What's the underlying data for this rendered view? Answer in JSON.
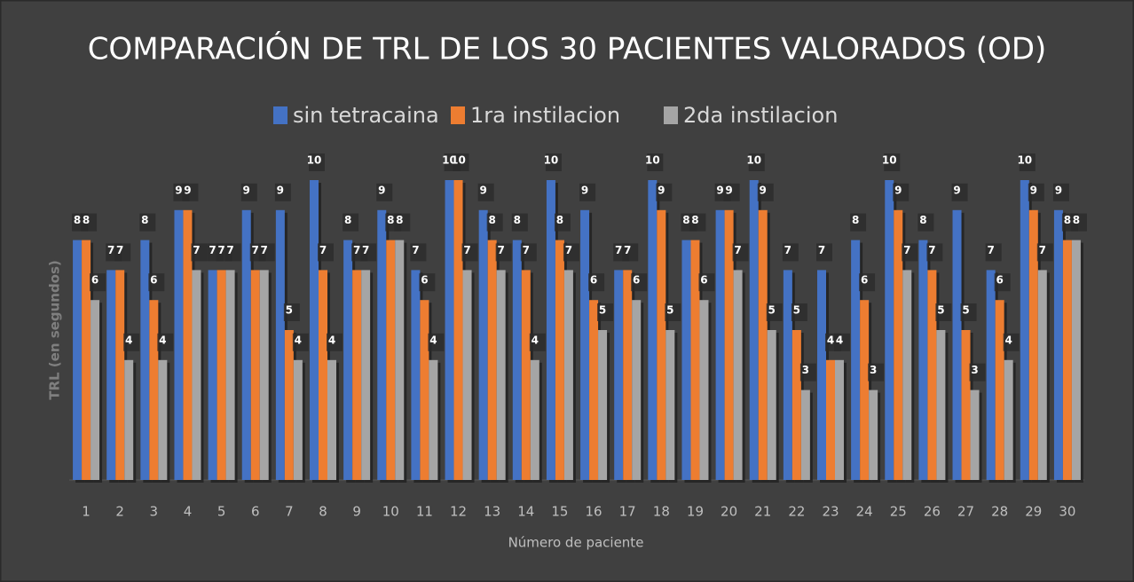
{
  "chart_data": {
    "type": "bar",
    "title": "COMPARACIÓN DE TRL DE LOS 30 PACIENTES VALORADOS (OD)",
    "x_label": "Número de paciente",
    "y_label": "TRL (en segundos)",
    "categories": [
      "1",
      "2",
      "3",
      "4",
      "5",
      "6",
      "7",
      "8",
      "9",
      "10",
      "11",
      "12",
      "13",
      "14",
      "15",
      "16",
      "17",
      "18",
      "19",
      "20",
      "21",
      "22",
      "23",
      "24",
      "25",
      "26",
      "27",
      "28",
      "29",
      "30"
    ],
    "series": [
      {
        "name": "sin tetracaina",
        "color": "#4472c4",
        "values": [
          8,
          7,
          8,
          9,
          7,
          9,
          9,
          10,
          8,
          9,
          7,
          10,
          9,
          8,
          10,
          9,
          7,
          10,
          8,
          9,
          10,
          7,
          7,
          8,
          10,
          8,
          9,
          7,
          10,
          9
        ]
      },
      {
        "name": "1ra instilacion",
        "color": "#ed7d31",
        "values": [
          8,
          7,
          6,
          9,
          7,
          7,
          5,
          7,
          7,
          8,
          6,
          10,
          8,
          7,
          8,
          6,
          7,
          9,
          8,
          9,
          9,
          5,
          4,
          6,
          9,
          7,
          5,
          6,
          9,
          8
        ]
      },
      {
        "name": "2da instilacion",
        "color": "#a5a5a5",
        "values": [
          6,
          4,
          4,
          7,
          7,
          7,
          4,
          4,
          7,
          8,
          4,
          7,
          7,
          4,
          7,
          5,
          6,
          5,
          6,
          7,
          5,
          3,
          4,
          3,
          7,
          5,
          3,
          4,
          7,
          8
        ]
      }
    ],
    "ylim": [
      0,
      10
    ],
    "legend": "top"
  }
}
